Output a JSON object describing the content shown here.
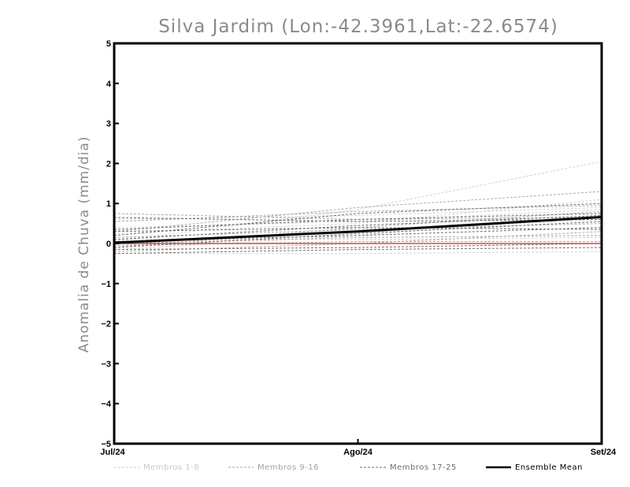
{
  "chart_data": {
    "type": "line",
    "title": "Silva Jardim (Lon:-42.3961,Lat:-22.6574)",
    "xlabel": "",
    "ylabel": "Anomalia de Chuva (mm/dia)",
    "x": [
      "Jul/24",
      "Ago/24",
      "Set/24"
    ],
    "ylim": [
      -5,
      5
    ],
    "yticks": [
      "5",
      "4",
      "3",
      "2",
      "1",
      "0",
      "-1",
      "-2",
      "-3",
      "-4",
      "-5"
    ],
    "zero_line_color": "#d94a4a",
    "legend": [
      {
        "label": "Membros 1-8",
        "color": "#d3d3d3"
      },
      {
        "label": "Membros 9-16",
        "color": "#a9a9a9"
      },
      {
        "label": "Membros 17-25",
        "color": "#6e6e6e"
      },
      {
        "label": "Ensemble Mean",
        "color": "#000000"
      }
    ],
    "series": [
      {
        "name": "Membro 1",
        "group": 0,
        "values": [
          0.05,
          0.85,
          2.05
        ]
      },
      {
        "name": "Membro 2",
        "group": 0,
        "values": [
          -0.15,
          0.2,
          0.7
        ]
      },
      {
        "name": "Membro 3",
        "group": 0,
        "values": [
          0.25,
          0.5,
          1.1
        ]
      },
      {
        "name": "Membro 4",
        "group": 0,
        "values": [
          -0.25,
          -0.25,
          -0.2
        ]
      },
      {
        "name": "Membro 5",
        "group": 0,
        "values": [
          0.6,
          0.7,
          0.9
        ]
      },
      {
        "name": "Membro 6",
        "group": 0,
        "values": [
          -0.05,
          0.3,
          0.6
        ]
      },
      {
        "name": "Membro 7",
        "group": 0,
        "values": [
          0.1,
          0.1,
          0.15
        ]
      },
      {
        "name": "Membro 8",
        "group": 0,
        "values": [
          0.4,
          0.55,
          0.85
        ]
      },
      {
        "name": "Membro 9",
        "group": 1,
        "values": [
          0.75,
          0.6,
          0.65
        ]
      },
      {
        "name": "Membro 10",
        "group": 1,
        "values": [
          -0.1,
          0.4,
          0.8
        ]
      },
      {
        "name": "Membro 11",
        "group": 1,
        "values": [
          0.3,
          0.9,
          1.3
        ]
      },
      {
        "name": "Membro 12",
        "group": 1,
        "values": [
          -0.2,
          0.0,
          0.3
        ]
      },
      {
        "name": "Membro 13",
        "group": 1,
        "values": [
          0.15,
          0.35,
          0.5
        ]
      },
      {
        "name": "Membro 14",
        "group": 1,
        "values": [
          0.0,
          0.15,
          0.2
        ]
      },
      {
        "name": "Membro 15",
        "group": 1,
        "values": [
          0.55,
          0.8,
          0.95
        ]
      },
      {
        "name": "Membro 16",
        "group": 1,
        "values": [
          -0.05,
          0.05,
          0.05
        ]
      },
      {
        "name": "Membro 17",
        "group": 2,
        "values": [
          0.2,
          0.75,
          1.0
        ]
      },
      {
        "name": "Membro 18",
        "group": 2,
        "values": [
          -0.15,
          -0.1,
          0.0
        ]
      },
      {
        "name": "Membro 19",
        "group": 2,
        "values": [
          0.35,
          0.6,
          0.75
        ]
      },
      {
        "name": "Membro 20",
        "group": 2,
        "values": [
          0.05,
          0.2,
          0.4
        ]
      },
      {
        "name": "Membro 21",
        "group": 2,
        "values": [
          -0.25,
          -0.15,
          -0.1
        ]
      },
      {
        "name": "Membro 22",
        "group": 2,
        "values": [
          0.65,
          0.55,
          0.6
        ]
      },
      {
        "name": "Membro 23",
        "group": 2,
        "values": [
          0.1,
          0.45,
          0.7
        ]
      },
      {
        "name": "Membro 24",
        "group": 2,
        "values": [
          0.3,
          0.4,
          0.35
        ]
      },
      {
        "name": "Membro 25",
        "group": 2,
        "values": [
          -0.1,
          0.25,
          0.55
        ]
      },
      {
        "name": "Ensemble Mean",
        "group": 3,
        "values": [
          0.02,
          0.3,
          0.66
        ]
      }
    ]
  }
}
